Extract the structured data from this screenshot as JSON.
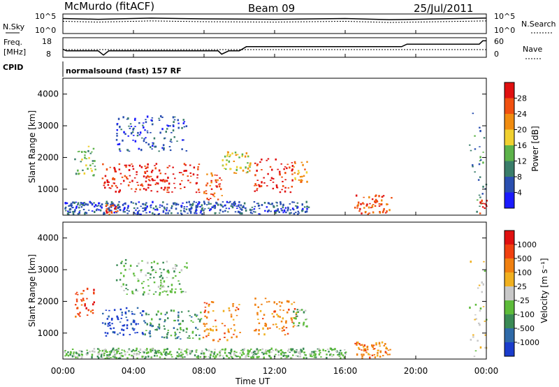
{
  "header": {
    "station": "McMurdo (fitACF)",
    "beam": "Beam 09",
    "date": "25/Jul/2011",
    "cpid": "normalsound (fast) 157 RF"
  },
  "left_labels": {
    "nsky": "N.Sky",
    "freq_line1": "Freq.",
    "freq_line2": "[MHz]",
    "cpid": "CPID"
  },
  "right_labels": {
    "nsearch": "N.Search",
    "nave": "Nave"
  },
  "noise_panel": {
    "left_ticks": [
      "10^5",
      "10^0"
    ],
    "right_ticks": [
      "10^5",
      "10^0"
    ]
  },
  "freq_panel": {
    "left_ticks": [
      "18",
      "8"
    ],
    "right_ticks": [
      "60",
      "0"
    ]
  },
  "x_axis": {
    "label": "Time UT",
    "ticks": [
      "00:00",
      "04:00",
      "08:00",
      "12:00",
      "16:00",
      "20:00",
      "00:00"
    ]
  },
  "power_panel": {
    "ylabel": "Slant Range [km]",
    "yticks": [
      "1000",
      "2000",
      "3000",
      "4000"
    ],
    "colorbar_label": "Power [dB]",
    "colorbar_ticks": [
      "4",
      "8",
      "12",
      "16",
      "20",
      "24",
      "28"
    ],
    "colors": [
      "#1a1aff",
      "#2a4fb0",
      "#3a7d6a",
      "#5db34a",
      "#f0d030",
      "#f08c10",
      "#f05010",
      "#e01010"
    ]
  },
  "velocity_panel": {
    "ylabel": "Slant Range [km]",
    "yticks": [
      "1000",
      "2000",
      "3000",
      "4000"
    ],
    "colorbar_label": "Velocity [m s⁻¹]",
    "colorbar_ticks": [
      "1000",
      "500",
      "100",
      "25",
      "-25",
      "-100",
      "-500",
      "-1000"
    ],
    "colors": [
      "#1a3ccc",
      "#2f6aa8",
      "#3a8a55",
      "#5dbb3a",
      "#c8c8c8",
      "#f0b020",
      "#f08010",
      "#f04010",
      "#e01010"
    ]
  },
  "chart_data": {
    "type": "heatmap",
    "x_unit": "hours UT",
    "xlim": [
      0,
      24
    ],
    "ylim_km": [
      180,
      4500
    ],
    "noise_search_log": [
      [
        0,
        4.2
      ],
      [
        2,
        4.0
      ],
      [
        5,
        4.3
      ],
      [
        8,
        4.1
      ],
      [
        12,
        4.0
      ],
      [
        16,
        4.2
      ],
      [
        18.5,
        3.9
      ],
      [
        20,
        4.0
      ],
      [
        24,
        4.3
      ]
    ],
    "frequency_mhz": [
      [
        0,
        12
      ],
      [
        0.2,
        11
      ],
      [
        2.0,
        11
      ],
      [
        2.3,
        8.5
      ],
      [
        2.6,
        11
      ],
      [
        8.8,
        11
      ],
      [
        9.0,
        9
      ],
      [
        9.4,
        11
      ],
      [
        10,
        11
      ],
      [
        10.4,
        13.5
      ],
      [
        19.2,
        13.5
      ],
      [
        19.5,
        15
      ],
      [
        23.6,
        15
      ],
      [
        23.8,
        17
      ],
      [
        24,
        17
      ]
    ],
    "power_blobs": [
      {
        "t0": 2.2,
        "t1": 7.8,
        "r0": 900,
        "r1": 1800,
        "level": 7
      },
      {
        "t0": 7.8,
        "t1": 9.0,
        "r0": 650,
        "r1": 1500,
        "level": 6
      },
      {
        "t0": 9.0,
        "t1": 10.6,
        "r0": 1500,
        "r1": 2200,
        "level": 4
      },
      {
        "t0": 10.8,
        "t1": 13.0,
        "r0": 900,
        "r1": 2000,
        "level": 7
      },
      {
        "t0": 13.0,
        "t1": 13.8,
        "r0": 1200,
        "r1": 1900,
        "level": 5
      },
      {
        "t0": 0.6,
        "t1": 1.8,
        "r0": 1400,
        "r1": 2400,
        "level": 3
      },
      {
        "t0": 3.0,
        "t1": 7.0,
        "r0": 2200,
        "r1": 3300,
        "level": 1
      },
      {
        "t0": 0.0,
        "t1": 14.0,
        "r0": 200,
        "r1": 600,
        "level": 1
      },
      {
        "t0": 2.4,
        "t1": 3.1,
        "r0": 200,
        "r1": 500,
        "level": 6
      },
      {
        "t0": 16.5,
        "t1": 18.6,
        "r0": 200,
        "r1": 800,
        "level": 6
      },
      {
        "t0": 23.0,
        "t1": 24.0,
        "r0": 200,
        "r1": 3400,
        "level": 2
      },
      {
        "t0": 23.6,
        "t1": 24.0,
        "r0": 200,
        "r1": 700,
        "level": 7
      }
    ],
    "velocity_blobs": [
      {
        "t0": 2.2,
        "t1": 4.6,
        "r0": 900,
        "r1": 1800,
        "level": 0
      },
      {
        "t0": 4.6,
        "t1": 7.8,
        "r0": 800,
        "r1": 1700,
        "level": 2
      },
      {
        "t0": 7.8,
        "t1": 10.0,
        "r0": 700,
        "r1": 2000,
        "level": 6
      },
      {
        "t0": 10.8,
        "t1": 13.2,
        "r0": 900,
        "r1": 2100,
        "level": 6
      },
      {
        "t0": 13.0,
        "t1": 13.8,
        "r0": 1200,
        "r1": 1800,
        "level": 3
      },
      {
        "t0": 0.6,
        "t1": 1.8,
        "r0": 1500,
        "r1": 2400,
        "level": 7
      },
      {
        "t0": 3.0,
        "t1": 7.0,
        "r0": 2200,
        "r1": 3300,
        "level": 3
      },
      {
        "t0": 0.0,
        "t1": 16.0,
        "r0": 200,
        "r1": 500,
        "level": 3
      },
      {
        "t0": 16.5,
        "t1": 18.6,
        "r0": 200,
        "r1": 700,
        "level": 6
      },
      {
        "t0": 23.0,
        "t1": 24.0,
        "r0": 200,
        "r1": 3300,
        "level": 4
      }
    ]
  }
}
